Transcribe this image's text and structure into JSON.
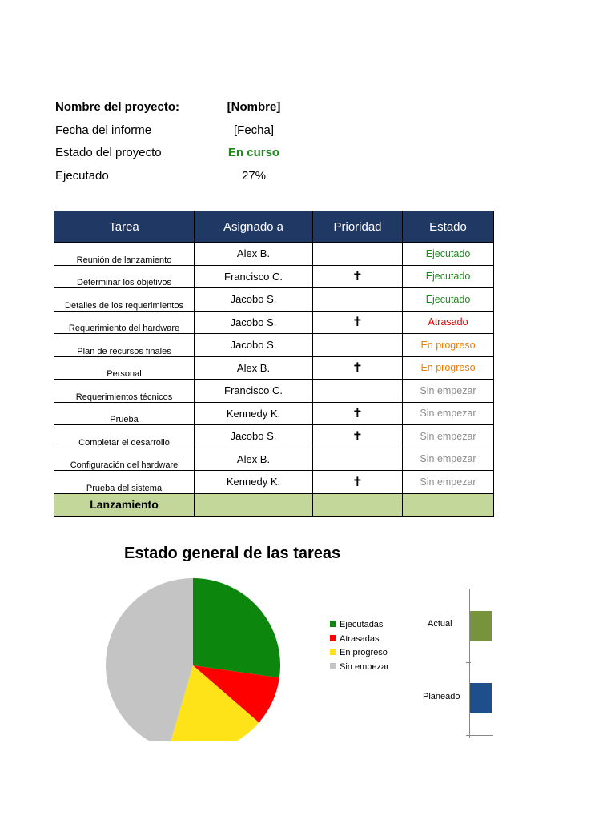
{
  "project": {
    "name_label": "Nombre del proyecto:",
    "name_value": "[Nombre]",
    "date_label": "Fecha del informe",
    "date_value": "[Fecha]",
    "status_label": "Estado del proyecto",
    "status_value": "En curso",
    "executed_label": "Ejecutado",
    "executed_value": "27%"
  },
  "table": {
    "headers": [
      "Tarea",
      "Asignado a",
      "Prioridad",
      "Estado"
    ],
    "rows": [
      {
        "task": "Reunión de lanzamiento",
        "assigned": "Alex B.",
        "priority": "",
        "status": "Ejecutado",
        "status_color": "#1e8a1e"
      },
      {
        "task": "Determinar los objetivos",
        "assigned": "Francisco C.",
        "priority": "✝",
        "status": "Ejecutado",
        "status_color": "#1e8a1e"
      },
      {
        "task": "Detalles de los requerimientos",
        "assigned": "Jacobo S.",
        "priority": "",
        "status": "Ejecutado",
        "status_color": "#1e8a1e"
      },
      {
        "task": "Requerimiento del hardware",
        "assigned": "Jacobo S.",
        "priority": "✝",
        "status": "Atrasado",
        "status_color": "#e00000"
      },
      {
        "task": "Plan de recursos finales",
        "assigned": "Jacobo S.",
        "priority": "",
        "status": "En progreso",
        "status_color": "#f07c00"
      },
      {
        "task": "Personal",
        "assigned": "Alex B.",
        "priority": "✝",
        "status": "En progreso",
        "status_color": "#f07c00"
      },
      {
        "task": "Requerimientos técnicos",
        "assigned": "Francisco C.",
        "priority": "",
        "status": "Sin empezar",
        "status_color": "#8c8c8c"
      },
      {
        "task": "Prueba",
        "assigned": "Kennedy K.",
        "priority": "✝",
        "status": "Sin empezar",
        "status_color": "#8c8c8c"
      },
      {
        "task": "Completar el desarrollo",
        "assigned": "Jacobo S.",
        "priority": "✝",
        "status": "Sin empezar",
        "status_color": "#8c8c8c"
      },
      {
        "task": "Configuración del hardware",
        "assigned": "Alex B.",
        "priority": "",
        "status": "Sin empezar",
        "status_color": "#8c8c8c"
      },
      {
        "task": "Prueba del sistema",
        "assigned": "Kennedy K.",
        "priority": "✝",
        "status": "Sin empezar",
        "status_color": "#8c8c8c"
      }
    ],
    "final_row": {
      "task": "Lanzamiento",
      "assigned": "",
      "priority": "",
      "status": ""
    },
    "priority_icon": "cross-icon"
  },
  "chart_data": [
    {
      "type": "pie",
      "title": "Estado general de las tareas",
      "labels": [
        "Ejecutadas",
        "Atrasadas",
        "En progreso",
        "Sin empezar"
      ],
      "values": [
        3,
        1,
        2,
        5
      ],
      "colors": [
        "#0d860d",
        "#ff0000",
        "#ffe319",
        "#c4c4c4"
      ],
      "legend": "right"
    },
    {
      "type": "bar",
      "orientation": "horizontal",
      "categories": [
        "Actual",
        "Planeado"
      ],
      "series": [
        {
          "values": [
            27,
            null
          ]
        }
      ],
      "colors": [
        "#77933c",
        "#1f4e8c"
      ],
      "note": "bars truncated at right edge"
    }
  ]
}
